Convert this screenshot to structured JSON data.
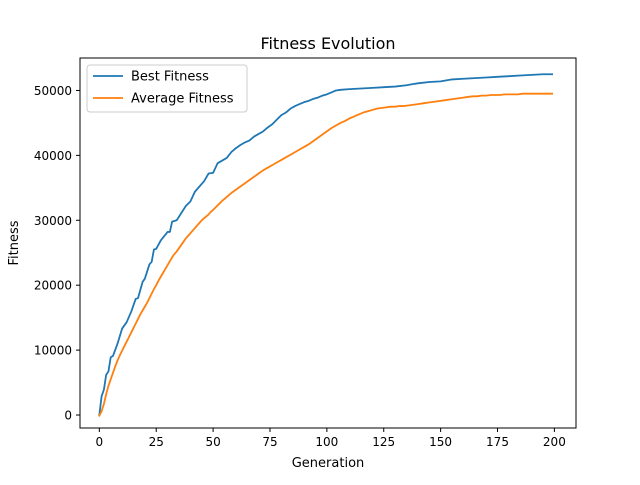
{
  "chart_data": {
    "type": "line",
    "title": "Fitness Evolution",
    "xlabel": "Generation",
    "ylabel": "Fitness",
    "xlim": [
      -8.5,
      209.5
    ],
    "ylim": [
      -2000,
      55000
    ],
    "xticks": [
      0,
      25,
      50,
      75,
      100,
      125,
      150,
      175,
      200
    ],
    "xtick_labels": [
      "0",
      "25",
      "50",
      "75",
      "100",
      "125",
      "150",
      "175",
      "200"
    ],
    "yticks": [
      0,
      10000,
      20000,
      30000,
      40000,
      50000
    ],
    "ytick_labels": [
      "0",
      "10000",
      "20000",
      "30000",
      "40000",
      "50000"
    ],
    "grid": false,
    "legend_position": "upper-left",
    "series": [
      {
        "name": "Best Fitness",
        "color": "#1f77b4",
        "points": [
          [
            0,
            0
          ],
          [
            1,
            2900
          ],
          [
            2,
            3900
          ],
          [
            3,
            6200
          ],
          [
            4,
            6700
          ],
          [
            5,
            8900
          ],
          [
            6,
            9100
          ],
          [
            8,
            11000
          ],
          [
            10,
            13300
          ],
          [
            12,
            14300
          ],
          [
            14,
            15900
          ],
          [
            16,
            17900
          ],
          [
            17,
            18000
          ],
          [
            19,
            20500
          ],
          [
            20,
            21000
          ],
          [
            22,
            23200
          ],
          [
            23,
            23600
          ],
          [
            24,
            25500
          ],
          [
            25,
            25600
          ],
          [
            27,
            26900
          ],
          [
            30,
            28200
          ],
          [
            31,
            28200
          ],
          [
            32,
            29800
          ],
          [
            34,
            30000
          ],
          [
            36,
            31100
          ],
          [
            38,
            32200
          ],
          [
            40,
            32900
          ],
          [
            42,
            34400
          ],
          [
            44,
            35200
          ],
          [
            46,
            36000
          ],
          [
            48,
            37200
          ],
          [
            50,
            37300
          ],
          [
            52,
            38800
          ],
          [
            54,
            39200
          ],
          [
            56,
            39600
          ],
          [
            58,
            40500
          ],
          [
            60,
            41100
          ],
          [
            62,
            41600
          ],
          [
            64,
            42000
          ],
          [
            66,
            42300
          ],
          [
            68,
            42900
          ],
          [
            70,
            43300
          ],
          [
            72,
            43700
          ],
          [
            74,
            44300
          ],
          [
            76,
            44800
          ],
          [
            78,
            45500
          ],
          [
            80,
            46200
          ],
          [
            82,
            46600
          ],
          [
            84,
            47200
          ],
          [
            86,
            47600
          ],
          [
            88,
            47900
          ],
          [
            90,
            48200
          ],
          [
            92,
            48400
          ],
          [
            94,
            48700
          ],
          [
            96,
            48900
          ],
          [
            98,
            49200
          ],
          [
            100,
            49400
          ],
          [
            102,
            49700
          ],
          [
            104,
            50000
          ],
          [
            106,
            50100
          ],
          [
            110,
            50200
          ],
          [
            115,
            50300
          ],
          [
            120,
            50400
          ],
          [
            125,
            50500
          ],
          [
            130,
            50600
          ],
          [
            135,
            50800
          ],
          [
            138,
            51000
          ],
          [
            140,
            51100
          ],
          [
            145,
            51300
          ],
          [
            150,
            51400
          ],
          [
            155,
            51700
          ],
          [
            160,
            51800
          ],
          [
            165,
            51900
          ],
          [
            170,
            52000
          ],
          [
            175,
            52100
          ],
          [
            180,
            52200
          ],
          [
            185,
            52300
          ],
          [
            190,
            52400
          ],
          [
            195,
            52500
          ],
          [
            199,
            52500
          ]
        ]
      },
      {
        "name": "Average Fitness",
        "color": "#ff7f0e",
        "points": [
          [
            0,
            -100
          ],
          [
            1,
            600
          ],
          [
            2,
            1700
          ],
          [
            3,
            3200
          ],
          [
            4,
            4500
          ],
          [
            5,
            5500
          ],
          [
            6,
            6500
          ],
          [
            7,
            7500
          ],
          [
            8,
            8400
          ],
          [
            9,
            9200
          ],
          [
            10,
            9900
          ],
          [
            11,
            10600
          ],
          [
            12,
            11300
          ],
          [
            13,
            12000
          ],
          [
            14,
            12700
          ],
          [
            15,
            13400
          ],
          [
            16,
            14100
          ],
          [
            17,
            14800
          ],
          [
            18,
            15500
          ],
          [
            19,
            16100
          ],
          [
            20,
            16700
          ],
          [
            21,
            17300
          ],
          [
            22,
            18000
          ],
          [
            23,
            18700
          ],
          [
            24,
            19400
          ],
          [
            25,
            20000
          ],
          [
            26,
            20700
          ],
          [
            27,
            21300
          ],
          [
            28,
            21900
          ],
          [
            29,
            22500
          ],
          [
            30,
            23100
          ],
          [
            31,
            23700
          ],
          [
            32,
            24300
          ],
          [
            33,
            24800
          ],
          [
            34,
            25200
          ],
          [
            35,
            25700
          ],
          [
            36,
            26200
          ],
          [
            37,
            26700
          ],
          [
            38,
            27200
          ],
          [
            39,
            27600
          ],
          [
            40,
            28000
          ],
          [
            41,
            28400
          ],
          [
            42,
            28800
          ],
          [
            43,
            29200
          ],
          [
            44,
            29600
          ],
          [
            45,
            30000
          ],
          [
            46,
            30300
          ],
          [
            47,
            30600
          ],
          [
            48,
            30900
          ],
          [
            49,
            31300
          ],
          [
            50,
            31600
          ],
          [
            52,
            32300
          ],
          [
            54,
            33000
          ],
          [
            56,
            33600
          ],
          [
            58,
            34200
          ],
          [
            60,
            34700
          ],
          [
            62,
            35200
          ],
          [
            64,
            35700
          ],
          [
            66,
            36200
          ],
          [
            68,
            36700
          ],
          [
            70,
            37200
          ],
          [
            72,
            37700
          ],
          [
            74,
            38100
          ],
          [
            76,
            38500
          ],
          [
            78,
            38900
          ],
          [
            80,
            39300
          ],
          [
            82,
            39700
          ],
          [
            84,
            40100
          ],
          [
            86,
            40500
          ],
          [
            88,
            40900
          ],
          [
            90,
            41300
          ],
          [
            92,
            41700
          ],
          [
            94,
            42200
          ],
          [
            96,
            42700
          ],
          [
            98,
            43200
          ],
          [
            100,
            43700
          ],
          [
            102,
            44200
          ],
          [
            104,
            44600
          ],
          [
            106,
            45000
          ],
          [
            108,
            45300
          ],
          [
            110,
            45700
          ],
          [
            112,
            46000
          ],
          [
            114,
            46300
          ],
          [
            116,
            46600
          ],
          [
            118,
            46800
          ],
          [
            120,
            47000
          ],
          [
            122,
            47200
          ],
          [
            124,
            47300
          ],
          [
            126,
            47400
          ],
          [
            128,
            47500
          ],
          [
            130,
            47500
          ],
          [
            132,
            47600
          ],
          [
            134,
            47600
          ],
          [
            136,
            47700
          ],
          [
            138,
            47800
          ],
          [
            140,
            47900
          ],
          [
            142,
            48000
          ],
          [
            144,
            48100
          ],
          [
            146,
            48200
          ],
          [
            148,
            48300
          ],
          [
            150,
            48400
          ],
          [
            152,
            48500
          ],
          [
            154,
            48600
          ],
          [
            156,
            48700
          ],
          [
            158,
            48800
          ],
          [
            160,
            48900
          ],
          [
            162,
            49000
          ],
          [
            164,
            49100
          ],
          [
            166,
            49100
          ],
          [
            168,
            49200
          ],
          [
            170,
            49200
          ],
          [
            172,
            49300
          ],
          [
            174,
            49300
          ],
          [
            176,
            49300
          ],
          [
            178,
            49400
          ],
          [
            180,
            49400
          ],
          [
            182,
            49400
          ],
          [
            184,
            49400
          ],
          [
            186,
            49500
          ],
          [
            188,
            49500
          ],
          [
            190,
            49500
          ],
          [
            192,
            49500
          ],
          [
            194,
            49500
          ],
          [
            196,
            49500
          ],
          [
            198,
            49500
          ],
          [
            199,
            49500
          ]
        ]
      }
    ]
  }
}
